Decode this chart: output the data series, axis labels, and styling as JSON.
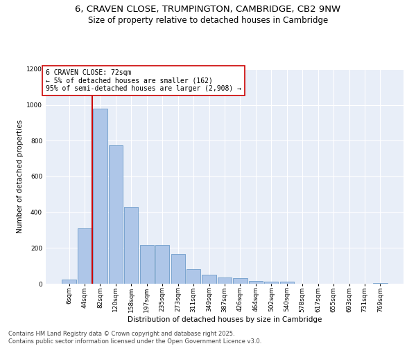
{
  "title_line1": "6, CRAVEN CLOSE, TRUMPINGTON, CAMBRIDGE, CB2 9NW",
  "title_line2": "Size of property relative to detached houses in Cambridge",
  "xlabel": "Distribution of detached houses by size in Cambridge",
  "ylabel": "Number of detached properties",
  "categories": [
    "6sqm",
    "44sqm",
    "82sqm",
    "120sqm",
    "158sqm",
    "197sqm",
    "235sqm",
    "273sqm",
    "311sqm",
    "349sqm",
    "387sqm",
    "426sqm",
    "464sqm",
    "502sqm",
    "540sqm",
    "578sqm",
    "617sqm",
    "655sqm",
    "693sqm",
    "731sqm",
    "769sqm"
  ],
  "values": [
    25,
    310,
    980,
    775,
    430,
    215,
    215,
    165,
    80,
    50,
    35,
    30,
    15,
    10,
    10,
    0,
    0,
    0,
    0,
    0,
    5
  ],
  "bar_color": "#aec6e8",
  "bar_edge_color": "#5a8fc2",
  "annotation_text_line1": "6 CRAVEN CLOSE: 72sqm",
  "annotation_text_line2": "← 5% of detached houses are smaller (162)",
  "annotation_text_line3": "95% of semi-detached houses are larger (2,908) →",
  "vline_color": "#cc0000",
  "annotation_box_edge_color": "#cc0000",
  "ylim": [
    0,
    1200
  ],
  "yticks": [
    0,
    200,
    400,
    600,
    800,
    1000,
    1200
  ],
  "bg_color": "#e8eef8",
  "footer_line1": "Contains HM Land Registry data © Crown copyright and database right 2025.",
  "footer_line2": "Contains public sector information licensed under the Open Government Licence v3.0.",
  "title_fontsize": 9.5,
  "subtitle_fontsize": 8.5,
  "xlabel_fontsize": 7.5,
  "ylabel_fontsize": 7.5,
  "tick_fontsize": 6.5,
  "annotation_fontsize": 7,
  "footer_fontsize": 6
}
